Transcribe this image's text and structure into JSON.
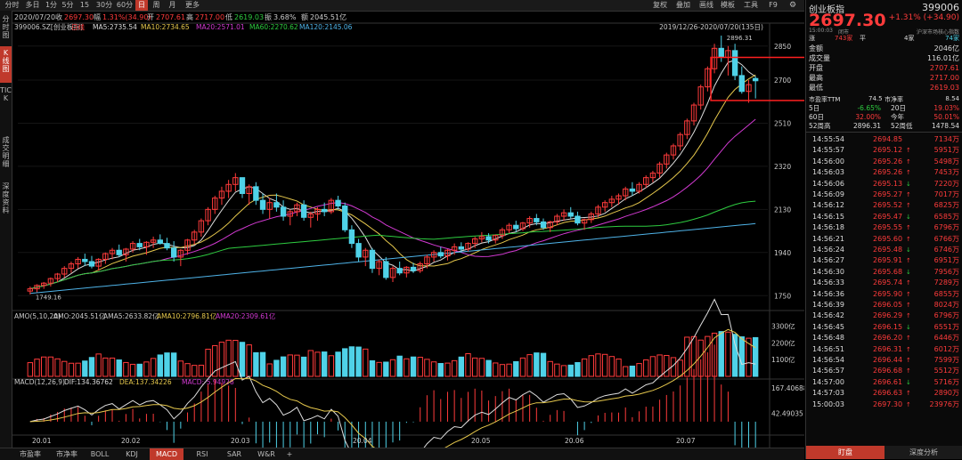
{
  "toolbar": {
    "items": [
      {
        "label": "分时",
        "active": false
      },
      {
        "label": "多日",
        "active": false
      },
      {
        "label": "1分",
        "active": false
      },
      {
        "label": "5分",
        "active": false
      },
      {
        "label": "15分",
        "active": false
      },
      {
        "label": "30分",
        "active": false
      },
      {
        "label": "60分",
        "active": false
      },
      {
        "label": "日",
        "active": true
      },
      {
        "label": "周",
        "active": false
      },
      {
        "label": "月",
        "active": false
      },
      {
        "label": "更多",
        "active": false
      }
    ],
    "right_items": [
      {
        "label": "复权"
      },
      {
        "label": "叠加"
      },
      {
        "label": "画线"
      },
      {
        "label": "模板"
      },
      {
        "label": "工具"
      },
      {
        "label": "F9"
      }
    ]
  },
  "left_tabs": [
    {
      "label": "分时图",
      "active": false
    },
    {
      "label": "K线图",
      "active": true
    },
    {
      "label": "TICK",
      "active": false
    },
    {
      "label": "成交明细",
      "active": false
    },
    {
      "label": "深度资料",
      "active": false
    }
  ],
  "info_line": {
    "date": "2020/07/20",
    "close_label": "收",
    "close": "2697.30",
    "change_label": "幅",
    "change": "1.31%(34.90)",
    "open_label": "开",
    "open": "2707.61",
    "high_label": "高",
    "high": "2717.00",
    "low_label": "低",
    "low": "2619.03",
    "amp_label": "振",
    "amp": "3.68%",
    "amount_label": "额",
    "amount": "2045.51亿"
  },
  "ma_line": {
    "code": "399006.SZ[创业板指]",
    "period": "日线",
    "ma5": "MA5:2735.54",
    "ma10": "MA10:2734.65",
    "ma20": "MA20:2571.01",
    "ma60": "MA60:2270.62",
    "ma120": "MA120:2145.06"
  },
  "range_label": "2019/12/26-2020/07/20(135日)",
  "peak_label": "2896.31",
  "low_label": "1749.16",
  "price_axis": [
    "2850",
    "2700",
    "2510",
    "2320",
    "2130",
    "1940",
    "1750"
  ],
  "vol_line": {
    "title": "AMO(5,10,20)",
    "amo": "AMO:2045.51亿",
    "amo5": "AMA5:2633.82亿",
    "amo10": "AMA10:2796.81亿",
    "amo20": "AMA20:2309.61亿"
  },
  "vol_axis": [
    "3300亿",
    "2200亿",
    "1100亿"
  ],
  "macd_line": {
    "title": "MACD(12,26,9)",
    "dif": "DIF:134.36762",
    "dea": "DEA:137.34226",
    "macd": "MACD:-5.94928"
  },
  "macd_axis": [
    "167.40688",
    "42.49035"
  ],
  "date_axis": [
    "20.01",
    "20.02",
    "20.03",
    "20.04",
    "20.05",
    "20.06",
    "20.07"
  ],
  "bottom_tabs": [
    {
      "label": "市盈率",
      "active": false
    },
    {
      "label": "市净率",
      "active": false
    },
    {
      "label": "BOLL",
      "active": false
    },
    {
      "label": "KDJ",
      "active": false
    },
    {
      "label": "MACD",
      "active": true
    },
    {
      "label": "RSI",
      "active": false
    },
    {
      "label": "SAR",
      "active": false
    },
    {
      "label": "W&R",
      "active": false
    },
    {
      "label": "+",
      "active": false
    }
  ],
  "quote": {
    "name": "创业板指",
    "code": "399006",
    "price": "2697.30",
    "change": "+1.31% (+34.90)",
    "time": "15:00:03",
    "status": "闭市",
    "board": "沪深市场核心指数",
    "rise_label": "涨",
    "rise": "743家",
    "flat_label": "平",
    "fall_label": "跌",
    "fall": "4家",
    "fall2": "74家",
    "stats": [
      {
        "label": "金额",
        "value": "2046亿"
      },
      {
        "label": "成交量",
        "value": "116.01亿"
      },
      {
        "label": "开盘",
        "value": "2707.61"
      },
      {
        "label": "最高",
        "value": "2717.00"
      },
      {
        "label": "最低",
        "value": "2619.03"
      }
    ],
    "pe_label": "市盈率TTM",
    "pe": "74.5",
    "pb_label": "市净率",
    "pb": "8.54",
    "perf": [
      {
        "l1": "5日",
        "v1": "-6.65%",
        "l2": "20日",
        "v2": "19.03%"
      },
      {
        "l1": "60日",
        "v1": "32.00%",
        "l2": "今年",
        "v2": "50.01%"
      },
      {
        "l1": "52周高",
        "v1": "2896.31",
        "l2": "52周低",
        "v2": "1478.54"
      }
    ]
  },
  "ticks": [
    {
      "time": "14:55:54",
      "price": "2694.85",
      "vol": "7134万",
      "dir": ""
    },
    {
      "time": "14:55:57",
      "price": "2695.12",
      "vol": "5951万",
      "dir": "up"
    },
    {
      "time": "14:56:00",
      "price": "2695.26",
      "vol": "5498万",
      "dir": "up"
    },
    {
      "time": "14:56:03",
      "price": "2695.26",
      "vol": "7453万",
      "dir": "up"
    },
    {
      "time": "14:56:06",
      "price": "2695.13",
      "vol": "7220万",
      "dir": "down"
    },
    {
      "time": "14:56:09",
      "price": "2695.27",
      "vol": "7017万",
      "dir": "up"
    },
    {
      "time": "14:56:12",
      "price": "2695.52",
      "vol": "6825万",
      "dir": "up"
    },
    {
      "time": "14:56:15",
      "price": "2695.47",
      "vol": "6585万",
      "dir": "down"
    },
    {
      "time": "14:56:18",
      "price": "2695.55",
      "vol": "6796万",
      "dir": "up"
    },
    {
      "time": "14:56:21",
      "price": "2695.60",
      "vol": "6766万",
      "dir": "up"
    },
    {
      "time": "14:56:24",
      "price": "2695.48",
      "vol": "6746万",
      "dir": "down"
    },
    {
      "time": "14:56:27",
      "price": "2695.91",
      "vol": "6951万",
      "dir": "up"
    },
    {
      "time": "14:56:30",
      "price": "2695.68",
      "vol": "7956万",
      "dir": "down"
    },
    {
      "time": "14:56:33",
      "price": "2695.74",
      "vol": "7289万",
      "dir": "up"
    },
    {
      "time": "14:56:36",
      "price": "2695.90",
      "vol": "6855万",
      "dir": "up"
    },
    {
      "time": "14:56:39",
      "price": "2696.05",
      "vol": "8024万",
      "dir": "up"
    },
    {
      "time": "14:56:42",
      "price": "2696.29",
      "vol": "6796万",
      "dir": "up"
    },
    {
      "time": "14:56:45",
      "price": "2696.15",
      "vol": "6551万",
      "dir": "down"
    },
    {
      "time": "14:56:48",
      "price": "2696.20",
      "vol": "6446万",
      "dir": "up"
    },
    {
      "time": "14:56:51",
      "price": "2696.31",
      "vol": "6012万",
      "dir": "up"
    },
    {
      "time": "14:56:54",
      "price": "2696.44",
      "vol": "7599万",
      "dir": "up"
    },
    {
      "time": "14:56:57",
      "price": "2696.68",
      "vol": "5512万",
      "dir": "up"
    },
    {
      "time": "14:57:00",
      "price": "2696.61",
      "vol": "5716万",
      "dir": "down"
    },
    {
      "time": "14:57:03",
      "price": "2696.63",
      "vol": "2890万",
      "dir": "up"
    },
    {
      "time": "15:00:03",
      "price": "2697.30",
      "vol": "23976万",
      "dir": "up"
    }
  ],
  "rp_tabs": [
    {
      "label": "盯盘",
      "active": true
    },
    {
      "label": "深度分析",
      "active": false
    }
  ],
  "colors": {
    "up": "#ff3b3b",
    "down": "#4fd2e8",
    "ma5": "#dddddd",
    "ma10": "#e6c84c",
    "ma20": "#d23ad2",
    "ma60": "#2ecc40",
    "ma120": "#4fb3e8"
  },
  "chart_data": {
    "type": "candlestick",
    "ylim": [
      1700,
      2900
    ],
    "x_ticks": [
      "20.01",
      "20.02",
      "20.03",
      "20.04",
      "20.05",
      "20.06",
      "20.07"
    ],
    "candles": [
      [
        1770,
        1790,
        1755,
        1780
      ],
      [
        1780,
        1800,
        1765,
        1795
      ],
      [
        1795,
        1810,
        1780,
        1805
      ],
      [
        1805,
        1830,
        1790,
        1825
      ],
      [
        1825,
        1850,
        1810,
        1845
      ],
      [
        1845,
        1880,
        1830,
        1870
      ],
      [
        1870,
        1900,
        1850,
        1890
      ],
      [
        1890,
        1920,
        1870,
        1910
      ],
      [
        1910,
        1935,
        1880,
        1900
      ],
      [
        1900,
        1925,
        1870,
        1880
      ],
      [
        1880,
        1915,
        1860,
        1910
      ],
      [
        1910,
        1940,
        1890,
        1935
      ],
      [
        1935,
        1960,
        1910,
        1950
      ],
      [
        1950,
        1975,
        1920,
        1930
      ],
      [
        1930,
        1960,
        1900,
        1955
      ],
      [
        1955,
        1990,
        1940,
        1980
      ],
      [
        1980,
        2000,
        1950,
        1965
      ],
      [
        1965,
        1990,
        1930,
        1985
      ],
      [
        1985,
        2010,
        1960,
        1995
      ],
      [
        1995,
        2020,
        1975,
        1980
      ],
      [
        1980,
        2005,
        1950,
        1960
      ],
      [
        1960,
        1990,
        1900,
        1920
      ],
      [
        1920,
        1955,
        1880,
        1950
      ],
      [
        1950,
        2000,
        1930,
        1995
      ],
      [
        1995,
        2040,
        1975,
        2030
      ],
      [
        2030,
        2090,
        2010,
        2080
      ],
      [
        2080,
        2140,
        2060,
        2130
      ],
      [
        2130,
        2190,
        2110,
        2180
      ],
      [
        2180,
        2230,
        2150,
        2210
      ],
      [
        2210,
        2260,
        2180,
        2240
      ],
      [
        2240,
        2290,
        2210,
        2270
      ],
      [
        2270,
        2260,
        2180,
        2200
      ],
      [
        2200,
        2240,
        2150,
        2230
      ],
      [
        2230,
        2250,
        2150,
        2170
      ],
      [
        2170,
        2200,
        2110,
        2130
      ],
      [
        2130,
        2180,
        2090,
        2160
      ],
      [
        2160,
        2200,
        2120,
        2140
      ],
      [
        2140,
        2170,
        2080,
        2100
      ],
      [
        2100,
        2130,
        2060,
        2120
      ],
      [
        2120,
        2160,
        2100,
        2150
      ],
      [
        2150,
        2170,
        2080,
        2095
      ],
      [
        2095,
        2120,
        2050,
        2110
      ],
      [
        2110,
        2140,
        2080,
        2130
      ],
      [
        2130,
        2160,
        2100,
        2120
      ],
      [
        2120,
        2180,
        2110,
        2170
      ],
      [
        2170,
        2190,
        2130,
        2145
      ],
      [
        2145,
        2160,
        2030,
        2040
      ],
      [
        2040,
        2060,
        1960,
        1980
      ],
      [
        1980,
        2000,
        1900,
        1920
      ],
      [
        1920,
        1960,
        1880,
        1950
      ],
      [
        1950,
        1960,
        1850,
        1870
      ],
      [
        1870,
        1910,
        1840,
        1900
      ],
      [
        1900,
        1920,
        1820,
        1830
      ],
      [
        1830,
        1880,
        1810,
        1870
      ],
      [
        1870,
        1900,
        1840,
        1850
      ],
      [
        1850,
        1880,
        1830,
        1875
      ],
      [
        1875,
        1895,
        1850,
        1860
      ],
      [
        1860,
        1900,
        1850,
        1890
      ],
      [
        1890,
        1930,
        1870,
        1920
      ],
      [
        1920,
        1950,
        1900,
        1940
      ],
      [
        1940,
        1965,
        1915,
        1925
      ],
      [
        1925,
        1955,
        1905,
        1950
      ],
      [
        1950,
        1980,
        1930,
        1965
      ],
      [
        1965,
        1985,
        1940,
        1955
      ],
      [
        1955,
        1985,
        1945,
        1980
      ],
      [
        1980,
        2010,
        1960,
        2000
      ],
      [
        2000,
        2030,
        1985,
        2010
      ],
      [
        2010,
        2025,
        1980,
        1995
      ],
      [
        1995,
        2020,
        1980,
        2015
      ],
      [
        2015,
        2050,
        2000,
        2040
      ],
      [
        2040,
        2070,
        2025,
        2060
      ],
      [
        2060,
        2080,
        2030,
        2045
      ],
      [
        2045,
        2075,
        2035,
        2070
      ],
      [
        2070,
        2100,
        2050,
        2090
      ],
      [
        2090,
        2110,
        2060,
        2075
      ],
      [
        2075,
        2090,
        2040,
        2050
      ],
      [
        2050,
        2080,
        2030,
        2075
      ],
      [
        2075,
        2110,
        2060,
        2100
      ],
      [
        2100,
        2130,
        2080,
        2115
      ],
      [
        2115,
        2140,
        2090,
        2100
      ],
      [
        2100,
        2120,
        2060,
        2070
      ],
      [
        2070,
        2090,
        2040,
        2085
      ],
      [
        2085,
        2120,
        2070,
        2110
      ],
      [
        2110,
        2150,
        2095,
        2140
      ],
      [
        2140,
        2170,
        2120,
        2160
      ],
      [
        2160,
        2190,
        2140,
        2175
      ],
      [
        2175,
        2200,
        2150,
        2190
      ],
      [
        2190,
        2230,
        2170,
        2220
      ],
      [
        2220,
        2250,
        2190,
        2210
      ],
      [
        2210,
        2250,
        2200,
        2240
      ],
      [
        2240,
        2280,
        2225,
        2270
      ],
      [
        2270,
        2300,
        2250,
        2290
      ],
      [
        2290,
        2340,
        2270,
        2330
      ],
      [
        2330,
        2380,
        2310,
        2370
      ],
      [
        2370,
        2420,
        2350,
        2410
      ],
      [
        2410,
        2470,
        2390,
        2460
      ],
      [
        2460,
        2530,
        2440,
        2520
      ],
      [
        2520,
        2600,
        2500,
        2590
      ],
      [
        2590,
        2680,
        2570,
        2670
      ],
      [
        2670,
        2760,
        2650,
        2750
      ],
      [
        2750,
        2860,
        2730,
        2840
      ],
      [
        2840,
        2896,
        2780,
        2800
      ],
      [
        2800,
        2850,
        2720,
        2830
      ],
      [
        2830,
        2860,
        2700,
        2720
      ],
      [
        2720,
        2760,
        2640,
        2650
      ],
      [
        2650,
        2700,
        2600,
        2680
      ],
      [
        2707,
        2717,
        2619,
        2697
      ]
    ]
  }
}
